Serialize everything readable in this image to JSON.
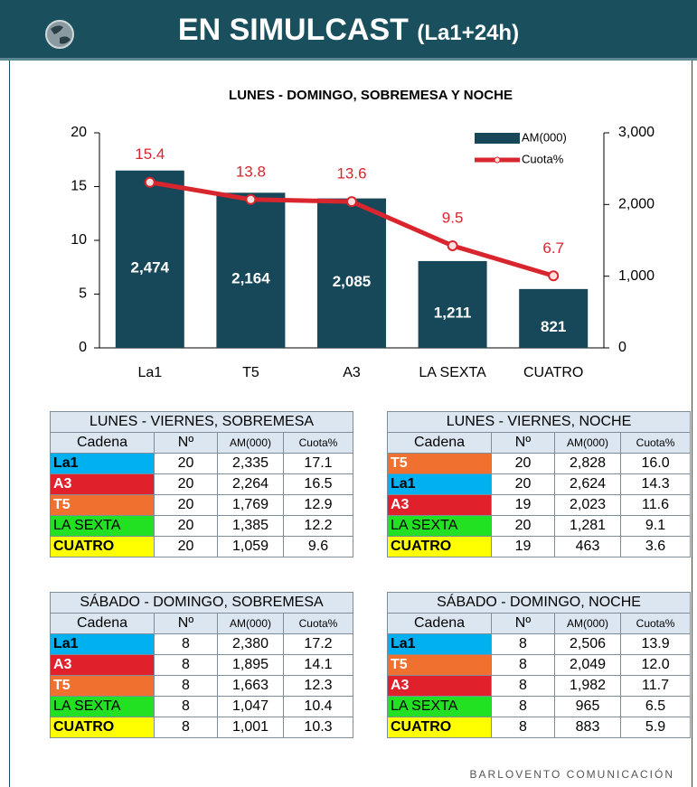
{
  "header": {
    "title": "EN SIMULCAST",
    "subtitle": "(La1+24h)"
  },
  "chart_data": {
    "type": "bar_line",
    "title": "LUNES - DOMINGO, SOBREMESA Y NOCHE",
    "categories": [
      "La1",
      "T5",
      "A3",
      "LA SEXTA",
      "CUATRO"
    ],
    "series": [
      {
        "name": "AM(000)",
        "type": "bar",
        "axis": "y2",
        "color": "#17485a",
        "values": [
          2474,
          2164,
          2085,
          1211,
          821
        ],
        "value_labels": [
          "2,474",
          "2,164",
          "2,085",
          "1,211",
          "821"
        ]
      },
      {
        "name": "Cuota%",
        "type": "line",
        "axis": "y",
        "color": "#d9262e",
        "values": [
          15.4,
          13.8,
          13.6,
          9.5,
          6.7
        ]
      }
    ],
    "ylim": [
      0,
      20
    ],
    "yticks": [
      0,
      5,
      10,
      15,
      20
    ],
    "y2lim": [
      0,
      3000
    ],
    "y2ticks": [
      0,
      {
        "value": 1000,
        "label": "1,000"
      },
      {
        "value": 2000,
        "label": "2,000"
      },
      {
        "value": 3000,
        "label": "3,000"
      }
    ],
    "legend": "top-right"
  },
  "tables": [
    {
      "title": "LUNES - VIERNES, SOBREMESA",
      "columns": [
        "Cadena",
        "Nº",
        "AM(000)",
        "Cuota%"
      ],
      "rows": [
        {
          "cadena": "La1",
          "n": "20",
          "am": "2,335",
          "cuota": "17.1",
          "color": "#00b0f0",
          "text_color": "#000000",
          "bold": true
        },
        {
          "cadena": "A3",
          "n": "20",
          "am": "2,264",
          "cuota": "16.5",
          "color": "#e0202a",
          "text_color": "#ffffff",
          "bold": true
        },
        {
          "cadena": "T5",
          "n": "20",
          "am": "1,769",
          "cuota": "12.9",
          "color": "#f07030",
          "text_color": "#ffffff",
          "bold": true
        },
        {
          "cadena": "LA SEXTA",
          "n": "20",
          "am": "1,385",
          "cuota": "12.2",
          "color": "#22e022",
          "text_color": "#000000",
          "bold": false
        },
        {
          "cadena": "CUATRO",
          "n": "20",
          "am": "1,059",
          "cuota": "9.6",
          "color": "#ffff00",
          "text_color": "#000000",
          "bold": true
        }
      ]
    },
    {
      "title": "LUNES - VIERNES, NOCHE",
      "columns": [
        "Cadena",
        "Nº",
        "AM(000)",
        "Cuota%"
      ],
      "rows": [
        {
          "cadena": "T5",
          "n": "20",
          "am": "2,828",
          "cuota": "16.0",
          "color": "#f07030",
          "text_color": "#ffffff",
          "bold": true
        },
        {
          "cadena": "La1",
          "n": "20",
          "am": "2,624",
          "cuota": "14.3",
          "color": "#00b0f0",
          "text_color": "#000000",
          "bold": true
        },
        {
          "cadena": "A3",
          "n": "19",
          "am": "2,023",
          "cuota": "11.6",
          "color": "#e0202a",
          "text_color": "#ffffff",
          "bold": true
        },
        {
          "cadena": "LA SEXTA",
          "n": "20",
          "am": "1,281",
          "cuota": "9.1",
          "color": "#22e022",
          "text_color": "#000000",
          "bold": false
        },
        {
          "cadena": "CUATRO",
          "n": "19",
          "am": "463",
          "cuota": "3.6",
          "color": "#ffff00",
          "text_color": "#000000",
          "bold": true
        }
      ]
    },
    {
      "title": "SÁBADO - DOMINGO, SOBREMESA",
      "columns": [
        "Cadena",
        "Nº",
        "AM(000)",
        "Cuota%"
      ],
      "rows": [
        {
          "cadena": "La1",
          "n": "8",
          "am": "2,380",
          "cuota": "17.2",
          "color": "#00b0f0",
          "text_color": "#000000",
          "bold": true
        },
        {
          "cadena": "A3",
          "n": "8",
          "am": "1,895",
          "cuota": "14.1",
          "color": "#e0202a",
          "text_color": "#ffffff",
          "bold": true
        },
        {
          "cadena": "T5",
          "n": "8",
          "am": "1,663",
          "cuota": "12.3",
          "color": "#f07030",
          "text_color": "#ffffff",
          "bold": true
        },
        {
          "cadena": "LA SEXTA",
          "n": "8",
          "am": "1,047",
          "cuota": "10.4",
          "color": "#22e022",
          "text_color": "#000000",
          "bold": false
        },
        {
          "cadena": "CUATRO",
          "n": "8",
          "am": "1,001",
          "cuota": "10.3",
          "color": "#ffff00",
          "text_color": "#000000",
          "bold": true
        }
      ]
    },
    {
      "title": "SÁBADO - DOMINGO, NOCHE",
      "columns": [
        "Cadena",
        "Nº",
        "AM(000)",
        "Cuota%"
      ],
      "rows": [
        {
          "cadena": "La1",
          "n": "8",
          "am": "2,506",
          "cuota": "13.9",
          "color": "#00b0f0",
          "text_color": "#000000",
          "bold": true
        },
        {
          "cadena": "T5",
          "n": "8",
          "am": "2,049",
          "cuota": "12.0",
          "color": "#f07030",
          "text_color": "#ffffff",
          "bold": true
        },
        {
          "cadena": "A3",
          "n": "8",
          "am": "1,982",
          "cuota": "11.7",
          "color": "#e0202a",
          "text_color": "#ffffff",
          "bold": true
        },
        {
          "cadena": "LA SEXTA",
          "n": "8",
          "am": "965",
          "cuota": "6.5",
          "color": "#22e022",
          "text_color": "#000000",
          "bold": false
        },
        {
          "cadena": "CUATRO",
          "n": "8",
          "am": "883",
          "cuota": "5.9",
          "color": "#ffff00",
          "text_color": "#000000",
          "bold": true
        }
      ]
    }
  ],
  "footer": "BARLOVENTO COMUNICACIÓN"
}
